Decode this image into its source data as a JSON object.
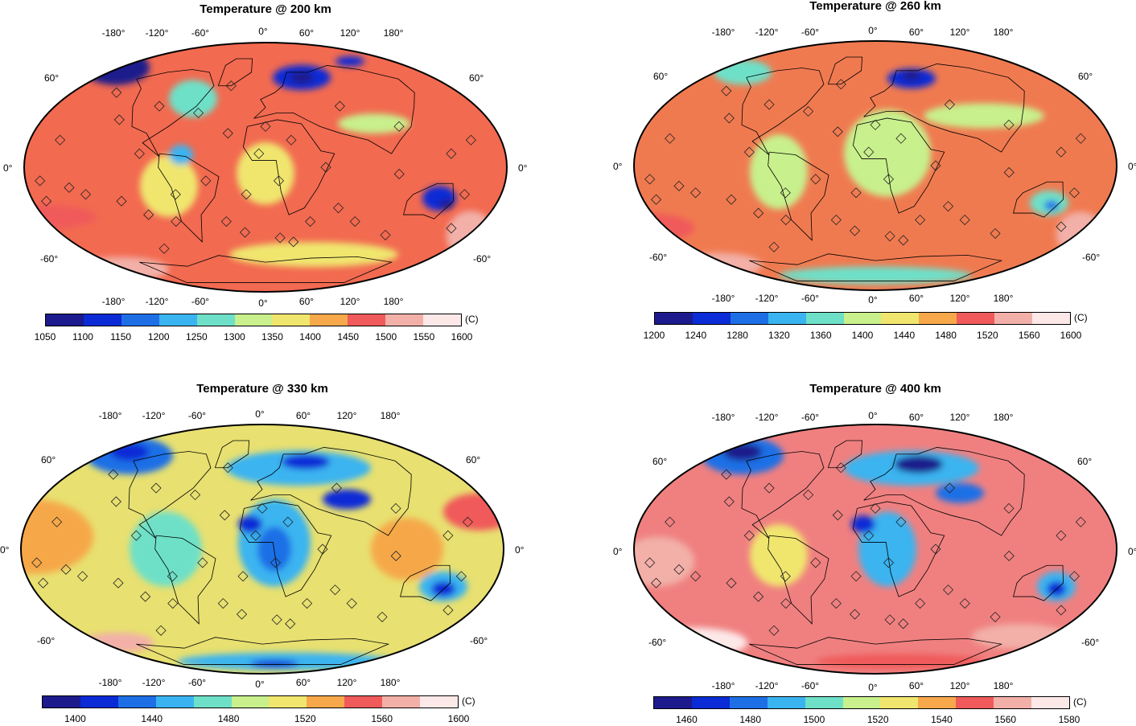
{
  "panels": [
    {
      "title": "Temperature @ 200 km",
      "lon_top": [
        "-180°",
        "-120°",
        "-60°",
        "0°",
        "60°",
        "120°",
        "180°"
      ],
      "lon_bottom": [
        "-180°",
        "-120°",
        "-60°",
        "0°",
        "60°",
        "120°",
        "180°"
      ],
      "lat_left": [
        "60°",
        "0°",
        "-60°"
      ],
      "lat_right": [
        "60°",
        "0°",
        "-60°"
      ],
      "unit": "(C)",
      "colorbar_ticks": [
        "1050",
        "1100",
        "1150",
        "1200",
        "1250",
        "1300",
        "1350",
        "1400",
        "1450",
        "1500",
        "1550",
        "1600"
      ],
      "colorbar_colors": [
        "#1c1a8c",
        "#0a2bd6",
        "#1e6fe6",
        "#3ab4f0",
        "#6ee0c8",
        "#c8f08c",
        "#f0e66e",
        "#f6a84a",
        "#f05a5a",
        "#f2b0a8",
        "#fde8e8"
      ],
      "dominant": "#f26a50"
    },
    {
      "title": "Temperature @ 260 km",
      "lon_top": [
        "-180°",
        "-120°",
        "-60°",
        "0°",
        "60°",
        "120°",
        "180°"
      ],
      "lon_bottom": [
        "-180°",
        "-120°",
        "-60°",
        "0°",
        "60°",
        "120°",
        "180°"
      ],
      "lat_left": [
        "60°",
        "0°",
        "-60°"
      ],
      "lat_right": [
        "60°",
        "0°",
        "-60°"
      ],
      "unit": "(C)",
      "colorbar_ticks": [
        "1200",
        "1240",
        "1280",
        "1320",
        "1360",
        "1400",
        "1440",
        "1480",
        "1520",
        "1560",
        "1600"
      ],
      "colorbar_colors": [
        "#1c1a8c",
        "#0a2bd6",
        "#1e6fe6",
        "#3ab4f0",
        "#6ee0c8",
        "#c8f08c",
        "#f0e66e",
        "#f6a84a",
        "#f05a5a",
        "#f2b0a8",
        "#fde8e8"
      ],
      "dominant": "#f07a50"
    },
    {
      "title": "Temperature @ 330 km",
      "lon_top": [
        "-180°",
        "-120°",
        "-60°",
        "0°",
        "60°",
        "120°",
        "180°"
      ],
      "lon_bottom": [
        "-180°",
        "-120°",
        "-60°",
        "0°",
        "60°",
        "120°",
        "180°"
      ],
      "lat_left": [
        "60°",
        "0°",
        "-60°"
      ],
      "lat_right": [
        "60°",
        "0°",
        "-60°"
      ],
      "unit": "(C)",
      "colorbar_ticks": [
        "1400",
        "1440",
        "1480",
        "1520",
        "1560",
        "1600"
      ],
      "colorbar_colors": [
        "#1c1a8c",
        "#0a2bd6",
        "#1e6fe6",
        "#3ab4f0",
        "#6ee0c8",
        "#c8f08c",
        "#f0e66e",
        "#f6a84a",
        "#f05a5a",
        "#f2b0a8",
        "#fde8e8"
      ],
      "dominant": "#e8e070"
    },
    {
      "title": "Temperature @ 400 km",
      "lon_top": [
        "-180°",
        "-120°",
        "-60°",
        "0°",
        "60°",
        "120°",
        "180°"
      ],
      "lon_bottom": [
        "-180°",
        "-120°",
        "-60°",
        "0°",
        "60°",
        "120°",
        "180°"
      ],
      "lat_left": [
        "60°",
        "0°",
        "-60°"
      ],
      "lat_right": [
        "60°",
        "0°",
        "-60°"
      ],
      "unit": "(C)",
      "colorbar_ticks": [
        "1460",
        "1480",
        "1500",
        "1520",
        "1540",
        "1560",
        "1580"
      ],
      "colorbar_colors": [
        "#1c1a8c",
        "#0a2bd6",
        "#1e6fe6",
        "#3ab4f0",
        "#6ee0c8",
        "#c8f08c",
        "#f0e66e",
        "#f6a84a",
        "#f05a5a",
        "#f2b0a8",
        "#fde8e8"
      ],
      "dominant": "#f08080"
    }
  ]
}
